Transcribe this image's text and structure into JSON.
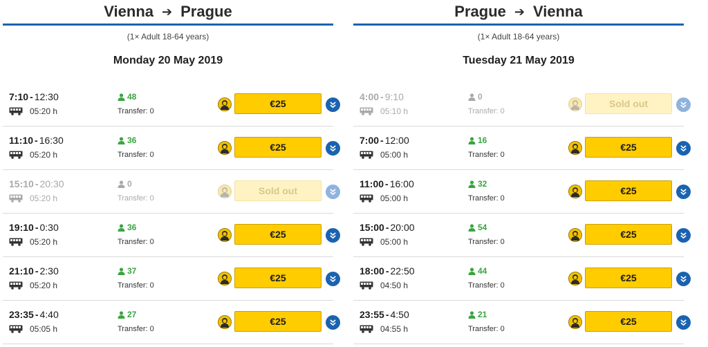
{
  "outbound": {
    "from": "Vienna",
    "to": "Prague",
    "arrow": "➔",
    "passengers": "(1× Adult 18-64 years)",
    "date": "Monday 20 May 2019",
    "trips": [
      {
        "dep": "7:10",
        "arr": "12:30",
        "duration": "05:20 h",
        "seats": "48",
        "transfer": "Transfer: 0",
        "price": "€25",
        "sold_out": false
      },
      {
        "dep": "11:10",
        "arr": "16:30",
        "duration": "05:20 h",
        "seats": "36",
        "transfer": "Transfer: 0",
        "price": "€25",
        "sold_out": false
      },
      {
        "dep": "15:10",
        "arr": "20:30",
        "duration": "05:20 h",
        "seats": "0",
        "transfer": "Transfer: 0",
        "price": "Sold out",
        "sold_out": true
      },
      {
        "dep": "19:10",
        "arr": "0:30",
        "duration": "05:20 h",
        "seats": "36",
        "transfer": "Transfer: 0",
        "price": "€25",
        "sold_out": false
      },
      {
        "dep": "21:10",
        "arr": "2:30",
        "duration": "05:20 h",
        "seats": "37",
        "transfer": "Transfer: 0",
        "price": "€25",
        "sold_out": false
      },
      {
        "dep": "23:35",
        "arr": "4:40",
        "duration": "05:05 h",
        "seats": "27",
        "transfer": "Transfer: 0",
        "price": "€25",
        "sold_out": false
      }
    ]
  },
  "return": {
    "from": "Prague",
    "to": "Vienna",
    "arrow": "➔",
    "passengers": "(1× Adult 18-64 years)",
    "date": "Tuesday 21 May 2019",
    "trips": [
      {
        "dep": "4:00",
        "arr": "9:10",
        "duration": "05:10 h",
        "seats": "0",
        "transfer": "Transfer: 0",
        "price": "Sold out",
        "sold_out": true
      },
      {
        "dep": "7:00",
        "arr": "12:00",
        "duration": "05:00 h",
        "seats": "16",
        "transfer": "Transfer: 0",
        "price": "€25",
        "sold_out": false
      },
      {
        "dep": "11:00",
        "arr": "16:00",
        "duration": "05:00 h",
        "seats": "32",
        "transfer": "Transfer: 0",
        "price": "€25",
        "sold_out": false
      },
      {
        "dep": "15:00",
        "arr": "20:00",
        "duration": "05:00 h",
        "seats": "54",
        "transfer": "Transfer: 0",
        "price": "€25",
        "sold_out": false
      },
      {
        "dep": "18:00",
        "arr": "22:50",
        "duration": "04:50 h",
        "seats": "44",
        "transfer": "Transfer: 0",
        "price": "€25",
        "sold_out": false
      },
      {
        "dep": "23:55",
        "arr": "4:50",
        "duration": "04:55 h",
        "seats": "21",
        "transfer": "Transfer: 0",
        "price": "€25",
        "sold_out": false
      }
    ]
  },
  "icons": {
    "bus": "bus-icon",
    "seats": "person-icon",
    "driver": "driver-avatar-icon",
    "expand": "chevron-double-down-icon"
  },
  "colors": {
    "accent": "#1a63b0",
    "price_button": "#ffcc00",
    "seats_green": "#3aa540"
  }
}
